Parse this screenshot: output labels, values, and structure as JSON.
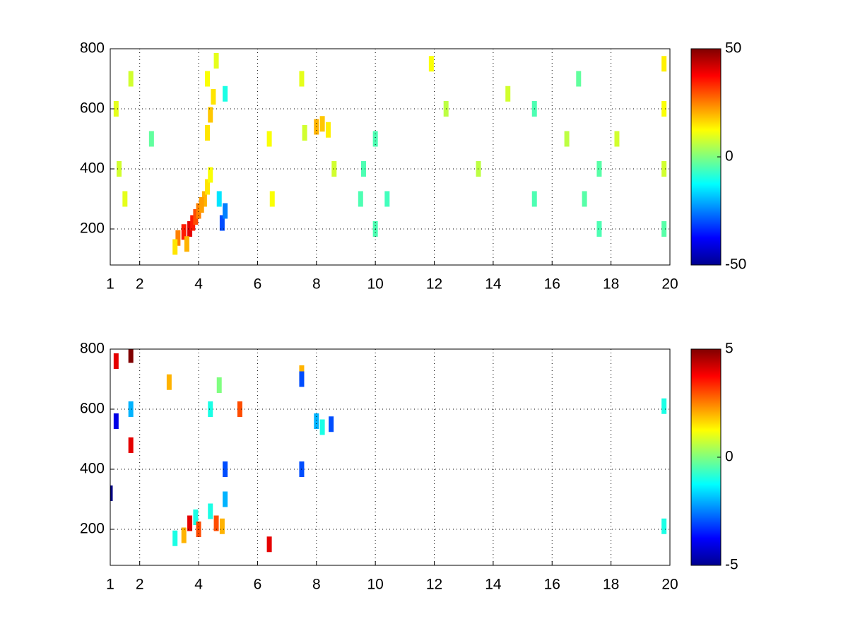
{
  "chart_data": [
    {
      "type": "heatmap",
      "colormap": "jet",
      "grid": true,
      "xlim": [
        1,
        20
      ],
      "ylim": [
        80,
        800
      ],
      "xticks": [
        1,
        2,
        4,
        6,
        8,
        10,
        12,
        14,
        16,
        18,
        20
      ],
      "yticks": [
        200,
        400,
        600,
        800
      ],
      "clim": [
        -50,
        50
      ],
      "cticks": [
        -50,
        0,
        50
      ],
      "x": [
        3.3,
        3.5,
        3.7,
        3.8,
        3.9,
        4.0,
        3.6,
        3.2,
        4.2,
        4.3,
        4.4,
        4.1,
        4.8,
        4.9,
        4.7,
        4.3,
        4.4,
        4.5,
        4.3,
        4.6,
        4.9,
        8.0,
        8.2,
        8.4,
        7.6,
        9.5,
        9.6,
        10.0,
        10.0,
        10.4,
        1.2,
        1.3,
        1.5,
        1.7,
        2.4,
        6.4,
        6.5,
        7.5,
        8.6,
        11.9,
        12.4,
        13.5,
        14.5,
        15.4,
        15.4,
        16.5,
        16.9,
        17.1,
        17.6,
        17.6,
        18.2,
        19.8,
        19.8,
        19.8,
        19.8
      ],
      "y": [
        170,
        190,
        200,
        220,
        240,
        260,
        150,
        140,
        300,
        340,
        380,
        280,
        220,
        260,
        300,
        520,
        580,
        640,
        700,
        760,
        650,
        540,
        550,
        530,
        520,
        300,
        400,
        200,
        500,
        300,
        600,
        400,
        300,
        700,
        500,
        500,
        300,
        700,
        400,
        750,
        600,
        400,
        650,
        600,
        300,
        500,
        700,
        300,
        400,
        200,
        500,
        750,
        600,
        400,
        200
      ],
      "values": [
        25,
        35,
        40,
        35,
        30,
        25,
        20,
        15,
        20,
        15,
        12,
        22,
        -30,
        -25,
        -15,
        15,
        18,
        15,
        12,
        10,
        -10,
        20,
        18,
        14,
        8,
        -5,
        -5,
        -5,
        -5,
        -6,
        10,
        8,
        10,
        8,
        -3,
        12,
        12,
        10,
        8,
        12,
        6,
        6,
        8,
        -5,
        -5,
        6,
        -3,
        -4,
        -4,
        -5,
        8,
        14,
        12,
        8,
        -4
      ]
    },
    {
      "type": "heatmap",
      "colormap": "jet",
      "grid": true,
      "xlim": [
        1,
        20
      ],
      "ylim": [
        80,
        800
      ],
      "xticks": [
        1,
        2,
        4,
        6,
        8,
        10,
        12,
        14,
        16,
        18,
        20
      ],
      "yticks": [
        200,
        400,
        600,
        800
      ],
      "clim": [
        -5,
        5
      ],
      "cticks": [
        -5,
        0,
        5
      ],
      "x": [
        3.2,
        3.5,
        3.7,
        3.9,
        4.0,
        4.4,
        4.6,
        4.8,
        4.9,
        4.9,
        4.4,
        4.7,
        5.4,
        7.5,
        7.5,
        7.5,
        8.0,
        8.2,
        8.5,
        1.2,
        1.2,
        1.7,
        1.7,
        1.7,
        1.0,
        6.4,
        19.8,
        19.8,
        3.0
      ],
      "y": [
        170,
        180,
        220,
        240,
        200,
        260,
        220,
        210,
        300,
        400,
        600,
        680,
        600,
        720,
        700,
        400,
        560,
        540,
        550,
        760,
        560,
        780,
        600,
        480,
        320,
        150,
        610,
        210,
        690
      ],
      "values": [
        -1,
        2,
        4,
        -1,
        3,
        -1,
        3,
        2,
        -2,
        -3,
        -1,
        0,
        3,
        2,
        -3,
        -3,
        -2,
        -1,
        -3,
        4,
        -4,
        5,
        -2,
        4,
        -5,
        4,
        -1,
        -1,
        2
      ]
    }
  ]
}
